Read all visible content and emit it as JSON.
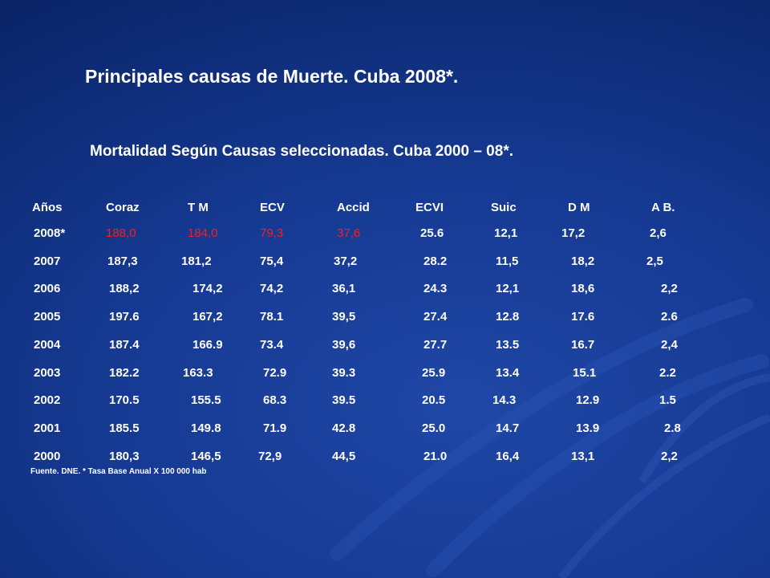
{
  "title": "Principales causas de Muerte. Cuba 2008*.",
  "subtitle": "Mortalidad Según Causas seleccionadas. Cuba 2000 – 08*.",
  "table": {
    "headers": [
      "Años",
      "Coraz",
      "T M",
      "ECV",
      "Accid",
      "ECVI",
      "Suic",
      "D M",
      "A B."
    ],
    "highlight_color": "#ff1a1a",
    "rows": [
      {
        "highlight": true,
        "cells": [
          "2008*",
          "188,0",
          "184,0",
          "79,3",
          "37,6",
          "25.6",
          "12,1",
          "17,2",
          "2,6"
        ]
      },
      {
        "highlight": false,
        "cells": [
          "2007",
          "187,3",
          "181,2",
          "75,4",
          "37,2",
          "28.2",
          "11,5",
          "18,2",
          "2,5"
        ]
      },
      {
        "highlight": false,
        "cells": [
          "2006",
          "188,2",
          "174,2",
          "74,2",
          "36,1",
          "24.3",
          "12,1",
          "18,6",
          "2,2"
        ]
      },
      {
        "highlight": false,
        "cells": [
          "2005",
          "197.6",
          "167,2",
          "78.1",
          "39,5",
          "27.4",
          "12.8",
          "17.6",
          "2.6"
        ]
      },
      {
        "highlight": false,
        "cells": [
          "2004",
          "187.4",
          "166.9",
          "73.4",
          "39,6",
          "27.7",
          "13.5",
          "16.7",
          "2,4"
        ]
      },
      {
        "highlight": false,
        "cells": [
          "2003",
          "182.2",
          "163.3",
          "72.9",
          "39.3",
          "25.9",
          "13.4",
          "15.1",
          "2.2"
        ]
      },
      {
        "highlight": false,
        "cells": [
          "2002",
          "170.5",
          "155.5",
          "68.3",
          "39.5",
          "20.5",
          "14.3",
          "12.9",
          "1.5"
        ]
      },
      {
        "highlight": false,
        "cells": [
          "2001",
          "185.5",
          "149.8",
          "71.9",
          "42.8",
          "25.0",
          "14.7",
          "13.9",
          "2.8"
        ]
      },
      {
        "highlight": false,
        "cells": [
          "2000",
          "180,3",
          "146,5",
          "72,9",
          "44,5",
          "21.0",
          "16,4",
          "13,1",
          "2,2"
        ]
      }
    ]
  },
  "footnote": "Fuente. DNE. * Tasa Base Anual X 100 000 hab",
  "colors": {
    "background": "#163a93",
    "text": "#ffffff",
    "highlight": "#ff1a1a"
  }
}
